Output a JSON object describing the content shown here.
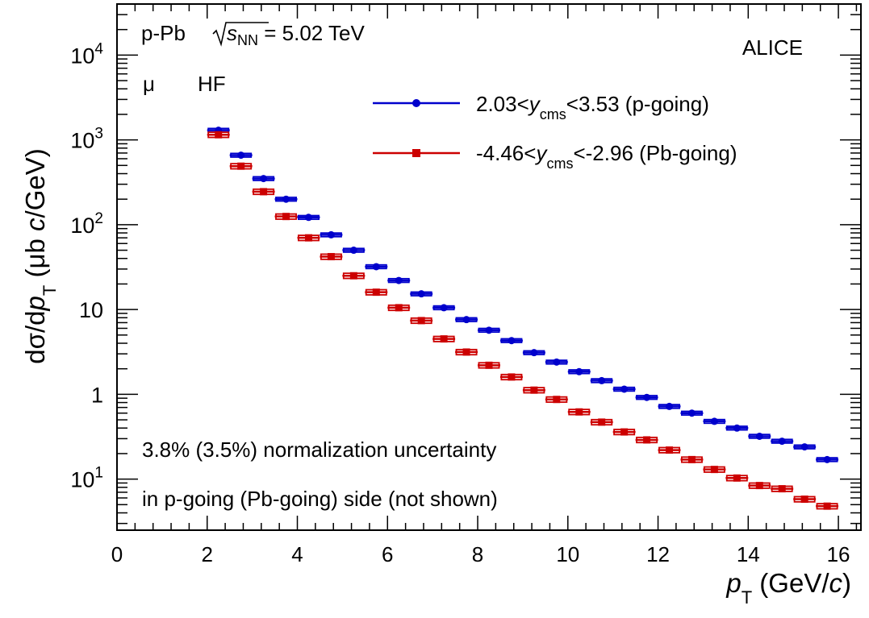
{
  "chart_data": {
    "type": "scatter",
    "ylog": true,
    "xlim": [
      0,
      16.5
    ],
    "ylim": [
      0.025,
      40000
    ],
    "xlabel_var": "p",
    "xlabel_sub": "T",
    "xlabel_unit_pre": " (GeV/",
    "xlabel_unit_var": "c",
    "xlabel_unit_post": ")",
    "ylabel_pre": "dσ/d",
    "ylabel_var": "p",
    "ylabel_sub": "T",
    "ylabel_unit_pre": " (μb ",
    "ylabel_unit_var": "c",
    "ylabel_unit_post": "/GeV)",
    "x_ticks": [
      "0",
      "2",
      "4",
      "6",
      "8",
      "10",
      "12",
      "14",
      "16"
    ],
    "y_ticks": [
      {
        "value": 10000,
        "base": "10",
        "exp": "4"
      },
      {
        "value": 1000,
        "base": "10",
        "exp": "3"
      },
      {
        "value": 100,
        "base": "10",
        "exp": "2"
      },
      {
        "value": 10,
        "base": "10",
        "exp": ""
      },
      {
        "value": 1,
        "base": "1",
        "exp": ""
      },
      {
        "value": 0.1,
        "base": "10",
        "exp": "1"
      }
    ],
    "annotations": {
      "system": "p-Pb",
      "energy_var": "s",
      "energy_sub": "NN",
      "energy_value": " = 5.02 TeV",
      "experiment": "ALICE",
      "particle": "μ",
      "particle_source": "HF",
      "norm_line1": "3.8% (3.5%) normalization uncertainty",
      "norm_line2": "in p-going (Pb-going) side (not shown)"
    },
    "series": [
      {
        "name": "2.03<y_cms<3.53 (p-going)",
        "legend_pre": "2.03<",
        "legend_var": "y",
        "legend_sub": "cms",
        "legend_post": "<3.53 (p-going)",
        "color": "#0000cc",
        "marker": "circle",
        "x": [
          2.25,
          2.75,
          3.25,
          3.75,
          4.25,
          4.75,
          5.25,
          5.75,
          6.25,
          6.75,
          7.25,
          7.75,
          8.25,
          8.75,
          9.25,
          9.75,
          10.25,
          10.75,
          11.25,
          11.75,
          12.25,
          12.75,
          13.25,
          13.75,
          14.25,
          14.75,
          15.25,
          15.75
        ],
        "y": [
          1300,
          660,
          350,
          200,
          122,
          76,
          50,
          32,
          22,
          15.3,
          10.5,
          7.6,
          5.7,
          4.3,
          3.1,
          2.4,
          1.85,
          1.45,
          1.15,
          0.92,
          0.72,
          0.6,
          0.48,
          0.4,
          0.32,
          0.28,
          0.24,
          0.17
        ]
      },
      {
        "name": "-4.46<y_cms<-2.96 (Pb-going)",
        "legend_pre": "-4.46<",
        "legend_var": "y",
        "legend_sub": "cms",
        "legend_post": "<-2.96 (Pb-going)",
        "color": "#cc0000",
        "marker": "square",
        "x": [
          2.25,
          2.75,
          3.25,
          3.75,
          4.25,
          4.75,
          5.25,
          5.75,
          6.25,
          6.75,
          7.25,
          7.75,
          8.25,
          8.75,
          9.25,
          9.75,
          10.25,
          10.75,
          11.25,
          11.75,
          12.25,
          12.75,
          13.25,
          13.75,
          14.25,
          14.75,
          15.25,
          15.75
        ],
        "y": [
          1150,
          490,
          245,
          125,
          70,
          42,
          25,
          16,
          10.5,
          7.4,
          4.5,
          3.15,
          2.2,
          1.6,
          1.12,
          0.87,
          0.62,
          0.47,
          0.36,
          0.29,
          0.22,
          0.17,
          0.13,
          0.103,
          0.084,
          0.077,
          0.058,
          0.048
        ]
      }
    ]
  }
}
